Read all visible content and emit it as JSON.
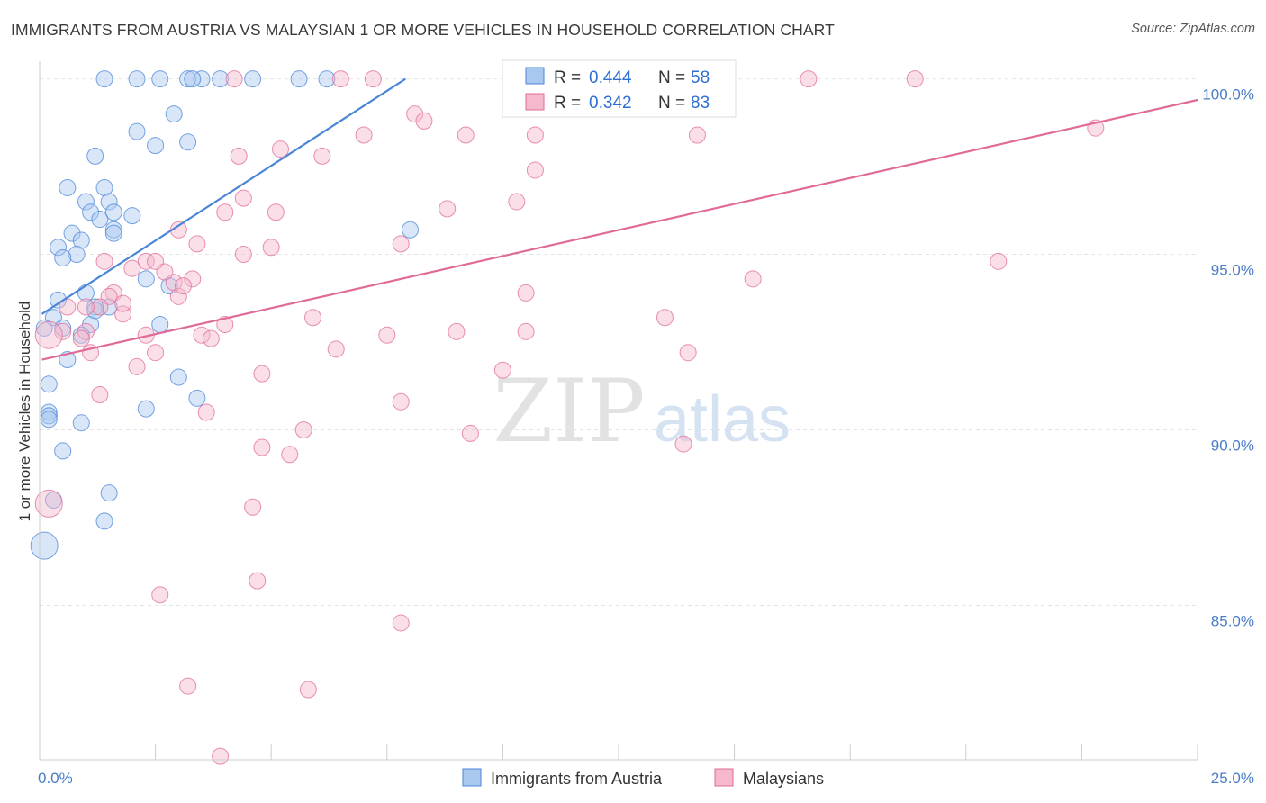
{
  "header": {
    "title": "IMMIGRANTS FROM AUSTRIA VS MALAYSIAN 1 OR MORE VEHICLES IN HOUSEHOLD CORRELATION CHART",
    "source": "Source: ZipAtlas.com"
  },
  "watermark": {
    "zip": "ZIP",
    "atlas": "atlas"
  },
  "chart_data": {
    "type": "scatter",
    "title": "IMMIGRANTS FROM AUSTRIA VS MALAYSIAN 1 OR MORE VEHICLES IN HOUSEHOLD CORRELATION CHART",
    "xlabel": "",
    "ylabel": "1 or more Vehicles in Household",
    "xlim": [
      0,
      25
    ],
    "ylim": [
      80.6,
      100.4
    ],
    "x_tick_labels": [
      {
        "value": 0,
        "label": "0.0%"
      },
      {
        "value": 25,
        "label": "25.0%"
      }
    ],
    "y_tick_labels": [
      {
        "value": 85,
        "label": "85.0%"
      },
      {
        "value": 90,
        "label": "90.0%"
      },
      {
        "value": 95,
        "label": "95.0%"
      },
      {
        "value": 100,
        "label": "100.0%"
      }
    ],
    "x_minor_ticks": [
      2.5,
      5,
      7.5,
      10,
      12.5,
      15,
      17.5,
      20,
      22.5
    ],
    "grid": true,
    "legend_placement": "top-center",
    "bottom_legend": [
      "Immigrants from Austria",
      "Malaysians"
    ],
    "series": [
      {
        "name": "Immigrants from Austria",
        "color": "#4a86d8",
        "fill": "#a9c8f0",
        "R": "0.444",
        "N": "58",
        "trend": {
          "x": [
            0.05,
            7.9
          ],
          "y": [
            93.3,
            100.0
          ]
        },
        "points": [
          [
            1.4,
            100
          ],
          [
            2.1,
            100
          ],
          [
            2.6,
            100
          ],
          [
            3.2,
            100
          ],
          [
            3.5,
            100
          ],
          [
            3.9,
            100
          ],
          [
            4.6,
            100
          ],
          [
            5.6,
            100
          ],
          [
            6.2,
            100
          ],
          [
            3.3,
            100
          ],
          [
            2.1,
            98.5
          ],
          [
            2.9,
            99.0
          ],
          [
            2.5,
            98.1
          ],
          [
            3.2,
            98.2
          ],
          [
            1.2,
            97.8
          ],
          [
            0.6,
            96.9
          ],
          [
            1.4,
            96.9
          ],
          [
            1.0,
            96.5
          ],
          [
            1.1,
            96.2
          ],
          [
            1.5,
            96.5
          ],
          [
            1.3,
            96.0
          ],
          [
            1.6,
            96.2
          ],
          [
            2.0,
            96.1
          ],
          [
            0.7,
            95.6
          ],
          [
            0.9,
            95.4
          ],
          [
            1.6,
            95.7
          ],
          [
            0.4,
            95.2
          ],
          [
            0.8,
            95.0
          ],
          [
            1.6,
            95.6
          ],
          [
            0.5,
            94.9
          ],
          [
            2.3,
            94.3
          ],
          [
            2.8,
            94.1
          ],
          [
            0.4,
            93.7
          ],
          [
            1.0,
            93.9
          ],
          [
            1.5,
            93.5
          ],
          [
            1.2,
            93.5
          ],
          [
            0.3,
            93.2
          ],
          [
            0.5,
            92.9
          ],
          [
            1.1,
            93.0
          ],
          [
            2.6,
            93.0
          ],
          [
            0.6,
            92.0
          ],
          [
            3.0,
            91.5
          ],
          [
            3.4,
            90.9
          ],
          [
            0.2,
            91.3
          ],
          [
            0.2,
            90.5
          ],
          [
            0.2,
            90.4
          ],
          [
            0.2,
            90.3
          ],
          [
            0.9,
            90.2
          ],
          [
            2.3,
            90.6
          ],
          [
            0.5,
            89.4
          ],
          [
            1.5,
            88.2
          ],
          [
            0.3,
            88.0
          ],
          [
            1.4,
            87.4
          ],
          [
            0.1,
            86.7
          ],
          [
            8.0,
            95.7
          ],
          [
            1.2,
            93.4
          ],
          [
            0.9,
            92.7
          ],
          [
            0.1,
            92.9
          ]
        ]
      },
      {
        "name": "Malaysians",
        "color": "#e06b98",
        "fill": "#f5b8cc",
        "R": "0.342",
        "N": "83",
        "trend": {
          "x": [
            0.05,
            25.0
          ],
          "y": [
            92.0,
            99.4
          ]
        },
        "points": [
          [
            4.2,
            100
          ],
          [
            6.5,
            100
          ],
          [
            7.2,
            100
          ],
          [
            11.5,
            100
          ],
          [
            14.2,
            100
          ],
          [
            16.6,
            100
          ],
          [
            18.9,
            100
          ],
          [
            8.1,
            99.0
          ],
          [
            8.3,
            98.8
          ],
          [
            7.0,
            98.4
          ],
          [
            9.2,
            98.4
          ],
          [
            10.7,
            98.4
          ],
          [
            14.2,
            98.4
          ],
          [
            22.8,
            98.6
          ],
          [
            5.2,
            98.0
          ],
          [
            6.1,
            97.8
          ],
          [
            4.3,
            97.8
          ],
          [
            10.7,
            97.4
          ],
          [
            4.4,
            96.6
          ],
          [
            4.0,
            96.2
          ],
          [
            5.1,
            96.2
          ],
          [
            10.3,
            96.5
          ],
          [
            3.0,
            95.7
          ],
          [
            3.4,
            95.3
          ],
          [
            7.8,
            95.3
          ],
          [
            5.0,
            95.2
          ],
          [
            4.4,
            95.0
          ],
          [
            1.4,
            94.8
          ],
          [
            2.3,
            94.8
          ],
          [
            2.5,
            94.8
          ],
          [
            2.0,
            94.6
          ],
          [
            2.9,
            94.2
          ],
          [
            3.3,
            94.3
          ],
          [
            3.0,
            93.8
          ],
          [
            1.6,
            93.9
          ],
          [
            1.5,
            93.8
          ],
          [
            1.3,
            93.5
          ],
          [
            1.0,
            93.5
          ],
          [
            0.6,
            93.5
          ],
          [
            1.8,
            93.3
          ],
          [
            0.5,
            92.8
          ],
          [
            1.0,
            92.8
          ],
          [
            2.3,
            92.7
          ],
          [
            3.5,
            92.7
          ],
          [
            3.7,
            92.6
          ],
          [
            5.9,
            93.2
          ],
          [
            7.5,
            92.7
          ],
          [
            9.0,
            92.8
          ],
          [
            10.5,
            92.8
          ],
          [
            6.4,
            92.3
          ],
          [
            13.5,
            93.2
          ],
          [
            14.0,
            92.2
          ],
          [
            15.4,
            94.3
          ],
          [
            20.7,
            94.8
          ],
          [
            10.5,
            93.9
          ],
          [
            2.5,
            92.2
          ],
          [
            1.1,
            92.2
          ],
          [
            2.1,
            91.8
          ],
          [
            4.8,
            91.6
          ],
          [
            10.0,
            91.7
          ],
          [
            1.3,
            91.0
          ],
          [
            7.8,
            90.8
          ],
          [
            3.6,
            90.5
          ],
          [
            5.7,
            90.0
          ],
          [
            9.3,
            89.9
          ],
          [
            13.9,
            89.6
          ],
          [
            4.8,
            89.5
          ],
          [
            5.4,
            89.3
          ],
          [
            4.6,
            87.8
          ],
          [
            0.2,
            87.9
          ],
          [
            4.7,
            85.7
          ],
          [
            2.6,
            85.3
          ],
          [
            7.8,
            84.5
          ],
          [
            3.2,
            82.7
          ],
          [
            5.8,
            82.6
          ],
          [
            3.9,
            80.7
          ],
          [
            0.2,
            92.7
          ],
          [
            3.1,
            94.1
          ],
          [
            1.8,
            93.6
          ],
          [
            0.9,
            92.6
          ],
          [
            2.7,
            94.5
          ],
          [
            4.0,
            93.0
          ],
          [
            8.8,
            96.3
          ]
        ]
      }
    ]
  }
}
